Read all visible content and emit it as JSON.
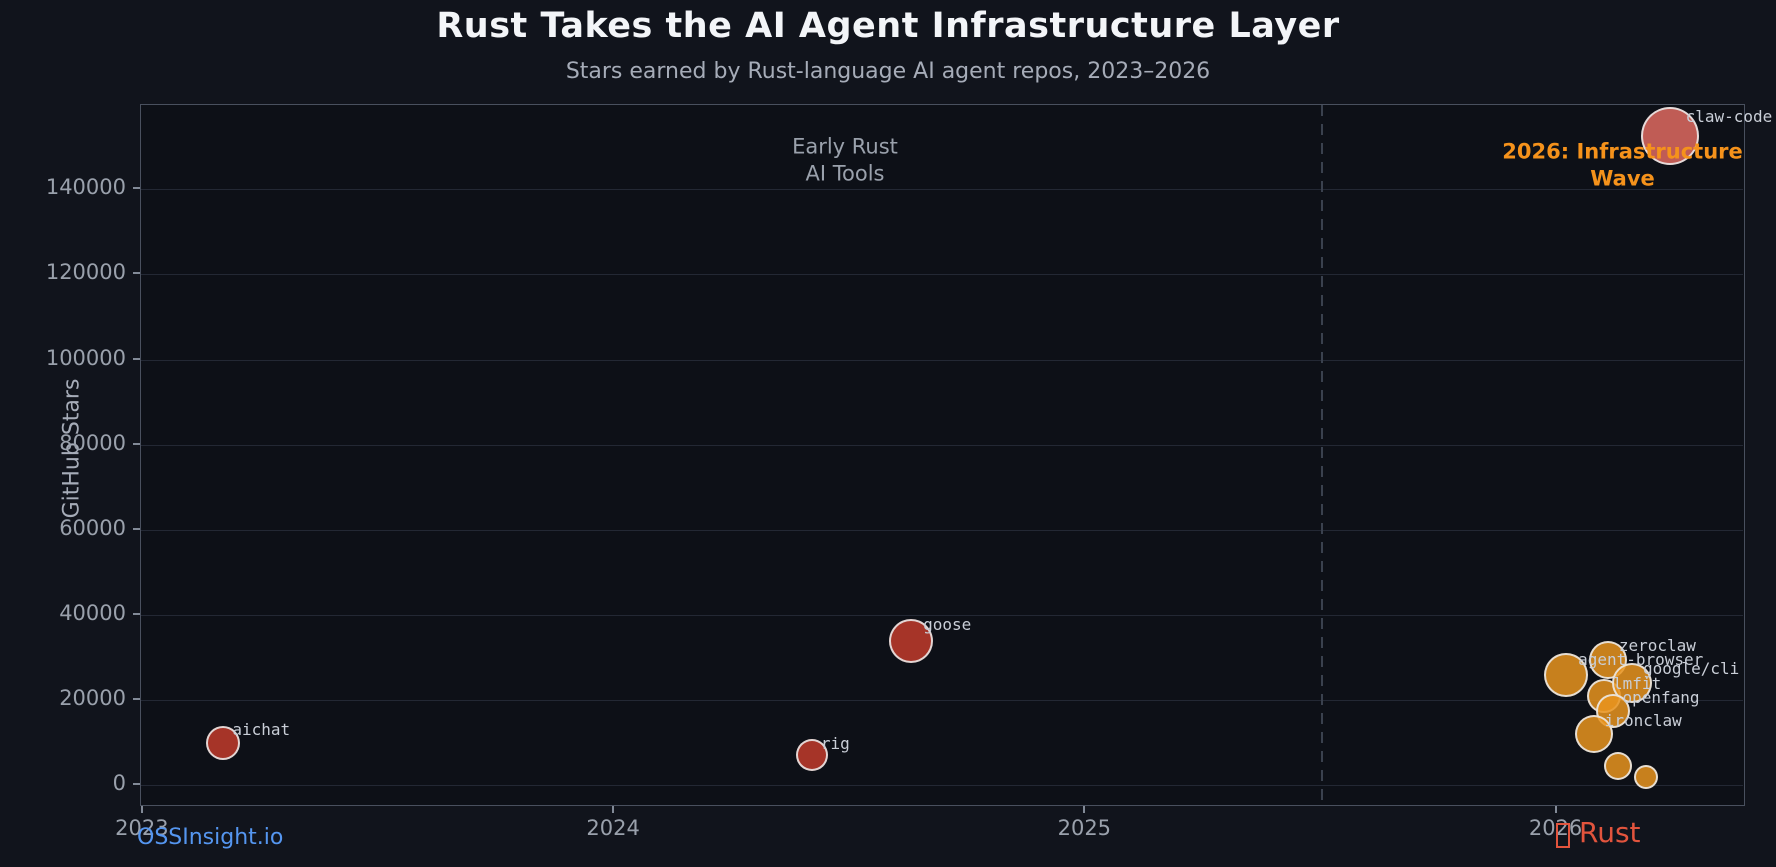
{
  "chart_data": {
    "type": "scatter",
    "title": "Rust Takes the AI Agent Infrastructure Layer",
    "subtitle": "Stars earned by Rust-language AI agent repos, 2023–2026",
    "xlabel": "",
    "ylabel": "GitHub Stars",
    "xlim": [
      2022.996,
      2026.402
    ],
    "ylim": [
      -5100,
      159800
    ],
    "x_ticks": [
      2023,
      2024,
      2025,
      2026
    ],
    "y_ticks": [
      0,
      20000,
      40000,
      60000,
      80000,
      100000,
      120000,
      140000
    ],
    "grid": "horizontal",
    "legend": "none",
    "divider_x": 2025.5,
    "colors": {
      "early": "#c23b2b",
      "wave": "#e9941e",
      "highlight": "#e06a60",
      "annotation_orange": "#f5921b",
      "annotation_gray": "#9aa1ac"
    },
    "points": [
      {
        "label": "aichat",
        "x": 2023.17,
        "y": 10000,
        "r": 17,
        "color": "early"
      },
      {
        "label": "rig",
        "x": 2024.42,
        "y": 7000,
        "r": 16,
        "color": "early"
      },
      {
        "label": "goose",
        "x": 2024.63,
        "y": 34000,
        "r": 22,
        "color": "early"
      },
      {
        "label": "agent-browser",
        "x": 2026.02,
        "y": 26000,
        "r": 22,
        "color": "wave"
      },
      {
        "label": "zeroclaw",
        "x": 2026.11,
        "y": 29500,
        "r": 19,
        "color": "wave"
      },
      {
        "label": "lmfit",
        "x": 2026.1,
        "y": 21000,
        "r": 17,
        "color": "wave"
      },
      {
        "label": "google/cli",
        "x": 2026.16,
        "y": 24000,
        "r": 20,
        "color": "wave"
      },
      {
        "label": "openfang",
        "x": 2026.12,
        "y": 17500,
        "r": 17,
        "color": "wave"
      },
      {
        "label": "ironclaw",
        "x": 2026.08,
        "y": 12000,
        "r": 19,
        "color": "wave"
      },
      {
        "label": "",
        "x": 2026.13,
        "y": 4500,
        "r": 14,
        "color": "wave"
      },
      {
        "label": "",
        "x": 2026.19,
        "y": 2000,
        "r": 12,
        "color": "wave"
      },
      {
        "label": "claw-code",
        "x": 2026.24,
        "y": 152500,
        "r": 29,
        "color": "highlight"
      }
    ],
    "annotations": [
      {
        "name": "early-rust-ai-tools",
        "lines": [
          "Early Rust",
          "AI Tools"
        ],
        "x": 2024.49,
        "y": 146600,
        "color": "#9aa1ac",
        "bold": false
      },
      {
        "name": "infrastructure-wave",
        "lines": [
          "2026: Infrastructure",
          "Wave"
        ],
        "x": 2026.14,
        "y": 145500,
        "color": "#f5921b",
        "bold": true
      }
    ]
  },
  "footer": {
    "left_brand": "OSSInsight.io",
    "right_label": "Rust",
    "right_icon": "crab-missing-glyph"
  }
}
